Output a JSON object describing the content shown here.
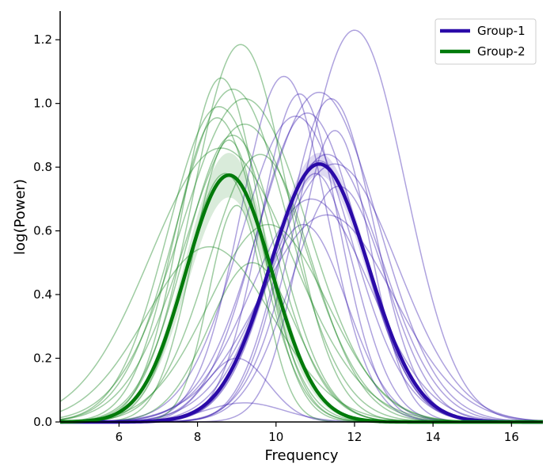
{
  "chart_data": {
    "type": "line",
    "xlabel": "Frequency",
    "ylabel": "log(Power)",
    "xlim": [
      4.5,
      16.8
    ],
    "ylim": [
      0,
      1.29
    ],
    "xticks": [
      "6",
      "8",
      "10",
      "12",
      "14",
      "16"
    ],
    "yticks": [
      "0.0",
      "0.2",
      "0.4",
      "0.6",
      "0.8",
      "1.0",
      "1.2"
    ],
    "grid": false,
    "legend_position": "top-right",
    "series": [
      {
        "name": "Group-1",
        "color": "#2a0aa8",
        "mean": {
          "amplitude": 0.81,
          "center": 11.1,
          "width": 1.25
        },
        "ci_halfwidth": 0.035,
        "individual_curves": [
          {
            "amplitude": 1.23,
            "center": 12.0,
            "width": 1.3
          },
          {
            "amplitude": 1.085,
            "center": 10.2,
            "width": 1.1
          },
          {
            "amplitude": 1.03,
            "center": 10.6,
            "width": 1.0
          },
          {
            "amplitude": 1.035,
            "center": 11.1,
            "width": 1.5
          },
          {
            "amplitude": 1.015,
            "center": 11.4,
            "width": 1.1
          },
          {
            "amplitude": 0.97,
            "center": 10.8,
            "width": 1.3
          },
          {
            "amplitude": 0.96,
            "center": 10.5,
            "width": 1.4
          },
          {
            "amplitude": 0.915,
            "center": 11.5,
            "width": 0.9
          },
          {
            "amplitude": 0.84,
            "center": 11.3,
            "width": 1.4
          },
          {
            "amplitude": 0.82,
            "center": 11.1,
            "width": 1.2
          },
          {
            "amplitude": 0.81,
            "center": 11.5,
            "width": 1.6
          },
          {
            "amplitude": 0.78,
            "center": 11.0,
            "width": 1.0
          },
          {
            "amplitude": 0.74,
            "center": 11.6,
            "width": 1.2
          },
          {
            "amplitude": 0.7,
            "center": 10.9,
            "width": 1.5
          },
          {
            "amplitude": 0.65,
            "center": 11.3,
            "width": 1.7
          },
          {
            "amplitude": 0.62,
            "center": 10.7,
            "width": 1.1
          },
          {
            "amplitude": 0.2,
            "center": 9.0,
            "width": 0.8
          },
          {
            "amplitude": 0.06,
            "center": 9.2,
            "width": 1.0
          }
        ]
      },
      {
        "name": "Group-2",
        "color": "#007a0a",
        "mean": {
          "amplitude": 0.775,
          "center": 8.8,
          "width": 1.1
        },
        "ci_halfwidth": 0.07,
        "individual_curves": [
          {
            "amplitude": 1.185,
            "center": 9.1,
            "width": 1.2
          },
          {
            "amplitude": 1.08,
            "center": 8.6,
            "width": 1.0
          },
          {
            "amplitude": 1.045,
            "center": 8.9,
            "width": 1.4
          },
          {
            "amplitude": 1.015,
            "center": 9.2,
            "width": 1.6
          },
          {
            "amplitude": 0.99,
            "center": 8.55,
            "width": 1.3
          },
          {
            "amplitude": 0.955,
            "center": 8.5,
            "width": 1.1
          },
          {
            "amplitude": 0.935,
            "center": 9.2,
            "width": 1.5
          },
          {
            "amplitude": 0.9,
            "center": 8.9,
            "width": 1.2
          },
          {
            "amplitude": 0.885,
            "center": 8.8,
            "width": 0.9
          },
          {
            "amplitude": 0.86,
            "center": 8.6,
            "width": 1.8
          },
          {
            "amplitude": 0.84,
            "center": 9.6,
            "width": 1.3
          },
          {
            "amplitude": 0.78,
            "center": 8.7,
            "width": 1.0
          },
          {
            "amplitude": 0.68,
            "center": 9.0,
            "width": 0.7
          },
          {
            "amplitude": 0.62,
            "center": 9.8,
            "width": 1.5
          },
          {
            "amplitude": 0.55,
            "center": 8.3,
            "width": 1.6
          },
          {
            "amplitude": 0.5,
            "center": 9.4,
            "width": 1.1
          }
        ]
      }
    ]
  }
}
